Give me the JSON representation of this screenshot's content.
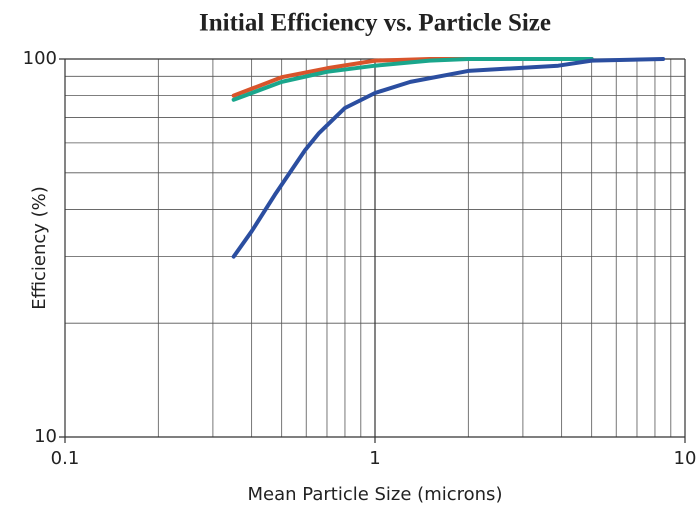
{
  "chart_data": {
    "type": "line",
    "title": "Initial Efficiency vs. Particle Size",
    "xlabel": "Mean Particle Size (microns)",
    "ylabel": "Efficiency (%)",
    "xscale": "log",
    "yscale": "log",
    "xlim": [
      0.1,
      10
    ],
    "ylim": [
      10,
      100
    ],
    "xticks": [
      0.1,
      1,
      10
    ],
    "yticks": [
      10,
      100
    ],
    "xminor": [
      0.2,
      0.3,
      0.4,
      0.5,
      0.6,
      0.7,
      0.8,
      0.9,
      2,
      3,
      4,
      5,
      6,
      7,
      8,
      9
    ],
    "yminor": [
      20,
      30,
      40,
      50,
      60,
      70,
      80,
      90
    ],
    "grid": true,
    "series": [
      {
        "color": "#d9542b",
        "x": [
          0.35,
          0.5,
          0.7,
          1.0,
          1.5,
          5
        ],
        "values": [
          80,
          89.5,
          94.5,
          99,
          100,
          100
        ]
      },
      {
        "color": "#1aa68c",
        "x": [
          0.35,
          0.5,
          0.7,
          1.0,
          1.5,
          2,
          5
        ],
        "values": [
          78,
          87,
          92.5,
          96,
          99,
          100,
          100
        ]
      },
      {
        "color": "#2b4ea0",
        "x": [
          0.35,
          0.4,
          0.475,
          0.595,
          0.66,
          0.8,
          1.0,
          1.3,
          2.0,
          3.9,
          5,
          8.5
        ],
        "values": [
          30,
          35,
          43.7,
          57.4,
          63.7,
          74.2,
          81.3,
          87,
          93,
          96,
          99,
          100
        ]
      }
    ]
  }
}
